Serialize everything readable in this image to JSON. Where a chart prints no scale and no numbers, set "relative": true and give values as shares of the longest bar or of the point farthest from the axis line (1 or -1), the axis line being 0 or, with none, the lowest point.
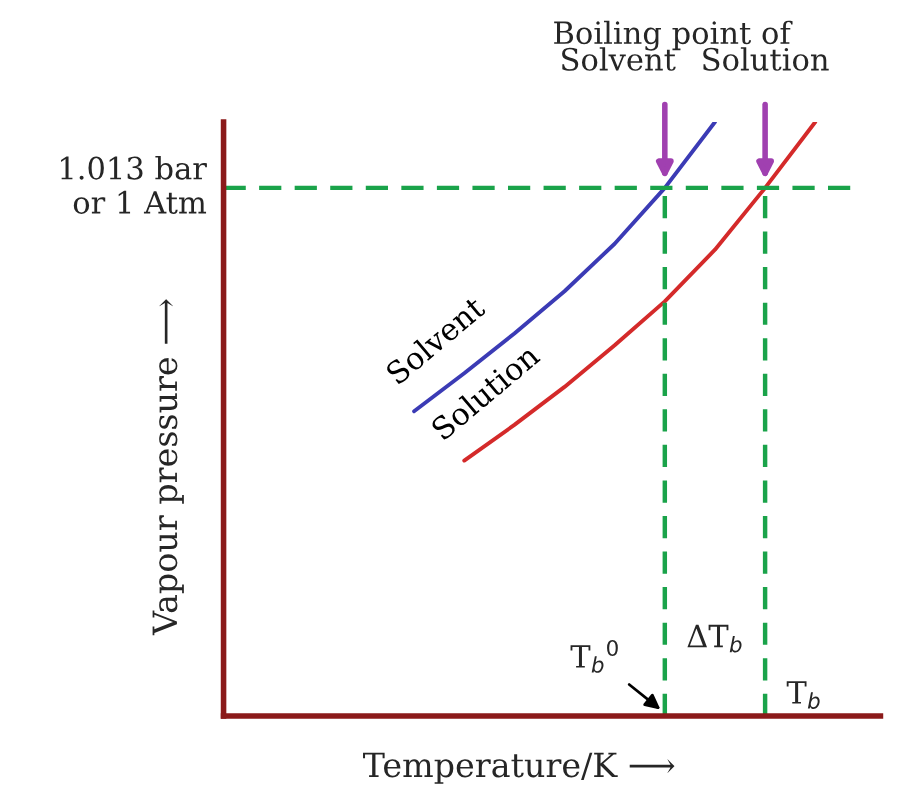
{
  "chart_data": {
    "type": "line",
    "relative": true,
    "xlabel": "Temperature/K ⟶",
    "categories": [
      null,
      null,
      null,
      null,
      null,
      null,
      null,
      null,
      null
    ],
    "marker": "none",
    "line_style": "solid",
    "series": [
      {
        "name": "Solvent",
        "color": "#3b3bb5",
        "values": [
          0.513,
          0.577,
          0.644,
          0.715,
          0.795,
          0.889,
          1.0,
          null,
          null
        ]
      },
      {
        "name": "Solution",
        "color": "#d42a2a",
        "values": [
          null,
          0.43,
          0.49,
          0.554,
          0.624,
          0.698,
          0.785,
          0.889,
          1.0
        ]
      }
    ],
    "ref_lines": [
      {
        "axis": "y",
        "value": 0.889,
        "label": "1.013 bar\nor 1 Atm",
        "color": "#1aa34a",
        "line_style": "dashed"
      }
    ],
    "annotations": [
      "Boiling point of",
      "Solvent",
      "Solution",
      "ΔT$_{b}$",
      "T$_{b}$$^{0}$",
      "T$_{b}$",
      "Vapour pressure ⟶"
    ]
  }
}
